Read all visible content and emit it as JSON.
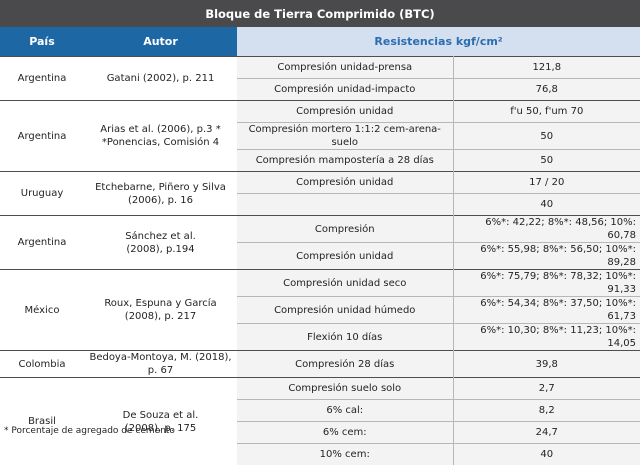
{
  "title": "Bloque de Tierra Comprimido (BTC)",
  "headers": {
    "pais": "País",
    "autor": "Autor",
    "resistencias": "Resistencias kgf/cm²"
  },
  "groups": [
    {
      "pais": "Argentina",
      "autor": "Gatani (2002), p. 211",
      "rows": [
        {
          "prop": "Compresión unidad-prensa",
          "val": "121,8"
        },
        {
          "prop": "Compresión unidad-impacto",
          "val": "76,8"
        }
      ]
    },
    {
      "pais": "Argentina",
      "autor": "Arias et al. (2006), p.3 *\n*Ponencias, Comisión 4",
      "rows": [
        {
          "prop": "Compresión unidad",
          "val": "f'u 50, f'um 70"
        },
        {
          "prop": "Compresión mortero 1:1:2 cem-arena-suelo",
          "val": "50"
        },
        {
          "prop": "Compresión mampostería a 28 días",
          "val": "50"
        }
      ]
    },
    {
      "pais": "Uruguay",
      "autor": "Etchebarne, Piñero y Silva\n(2006), p. 16",
      "rows": [
        {
          "prop": "Compresión unidad",
          "val": "17 / 20"
        },
        {
          "prop": "",
          "val": "40"
        }
      ]
    },
    {
      "pais": "Argentina",
      "autor": "Sánchez et al.\n(2008), p.194",
      "rows": [
        {
          "prop": "Compresión",
          "val": "6%*: 42,22; 8%*: 48,56; 10%: 60,78"
        },
        {
          "prop": "Compresión unidad",
          "val": "6%*: 55,98; 8%*: 56,50; 10%*: 89,28"
        }
      ]
    },
    {
      "pais": "México",
      "autor": "Roux, Espuna y García\n(2008), p. 217",
      "rows": [
        {
          "prop": "Compresión unidad seco",
          "val": "6%*: 75,79; 8%*: 78,32; 10%*: 91,33"
        },
        {
          "prop": "Compresión unidad húmedo",
          "val": "6%*: 54,34; 8%*: 37,50; 10%*: 61,73"
        },
        {
          "prop": "Flexión 10 días",
          "val": "6%*: 10,30; 8%*: 11,23; 10%*: 14,05"
        }
      ]
    },
    {
      "pais": "Colombia",
      "autor": "Bedoya-Montoya, M. (2018), p. 67",
      "rows": [
        {
          "prop": "Compresión 28 días",
          "val": "39,8"
        }
      ]
    },
    {
      "pais": "Brasil",
      "autor": "De Souza et al.\n(2008), p. 175",
      "rows": [
        {
          "prop": "Compresión suelo solo",
          "val": "2,7"
        },
        {
          "prop": "6% cal:",
          "val": "8,2"
        },
        {
          "prop": "6% cem:",
          "val": "24,7"
        },
        {
          "prop": "10% cem:",
          "val": "40"
        }
      ]
    }
  ],
  "footnote": "* Porcentaje de agregado de cemento"
}
